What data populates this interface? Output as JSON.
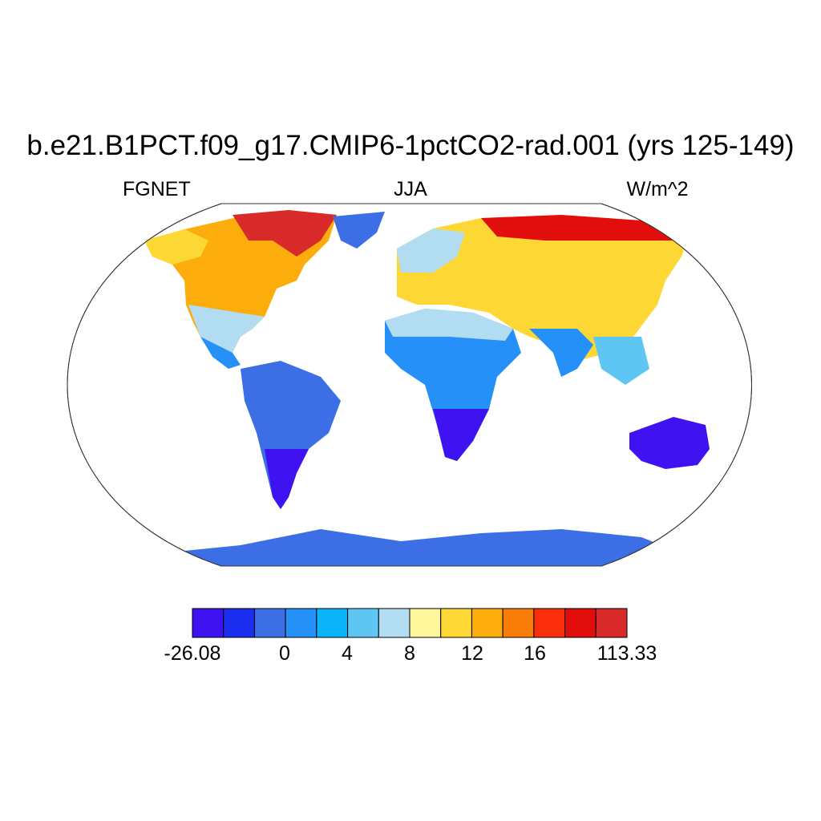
{
  "title": "b.e21.B1PCT.f09_g17.CMIP6-1pctCO2-rad.001 (yrs 125-149)",
  "subtitle_left": "FGNET",
  "subtitle_center": "JJA",
  "subtitle_right": "W/m^2",
  "colorbar": {
    "colors": [
      "#3f12f2",
      "#1c2ff0",
      "#3c6fe6",
      "#2590f8",
      "#0cb4f9",
      "#5fc5f2",
      "#b2dcf1",
      "#fef69b",
      "#fdd835",
      "#fcad0b",
      "#fb7d09",
      "#fb2f0c",
      "#e20d0d",
      "#d82a2a"
    ],
    "labels": [
      "-26.08",
      "0",
      "4",
      "8",
      "12",
      "16",
      "113.33"
    ]
  },
  "colors": {
    "ocean": "#ffffff",
    "outline": "#222222"
  }
}
